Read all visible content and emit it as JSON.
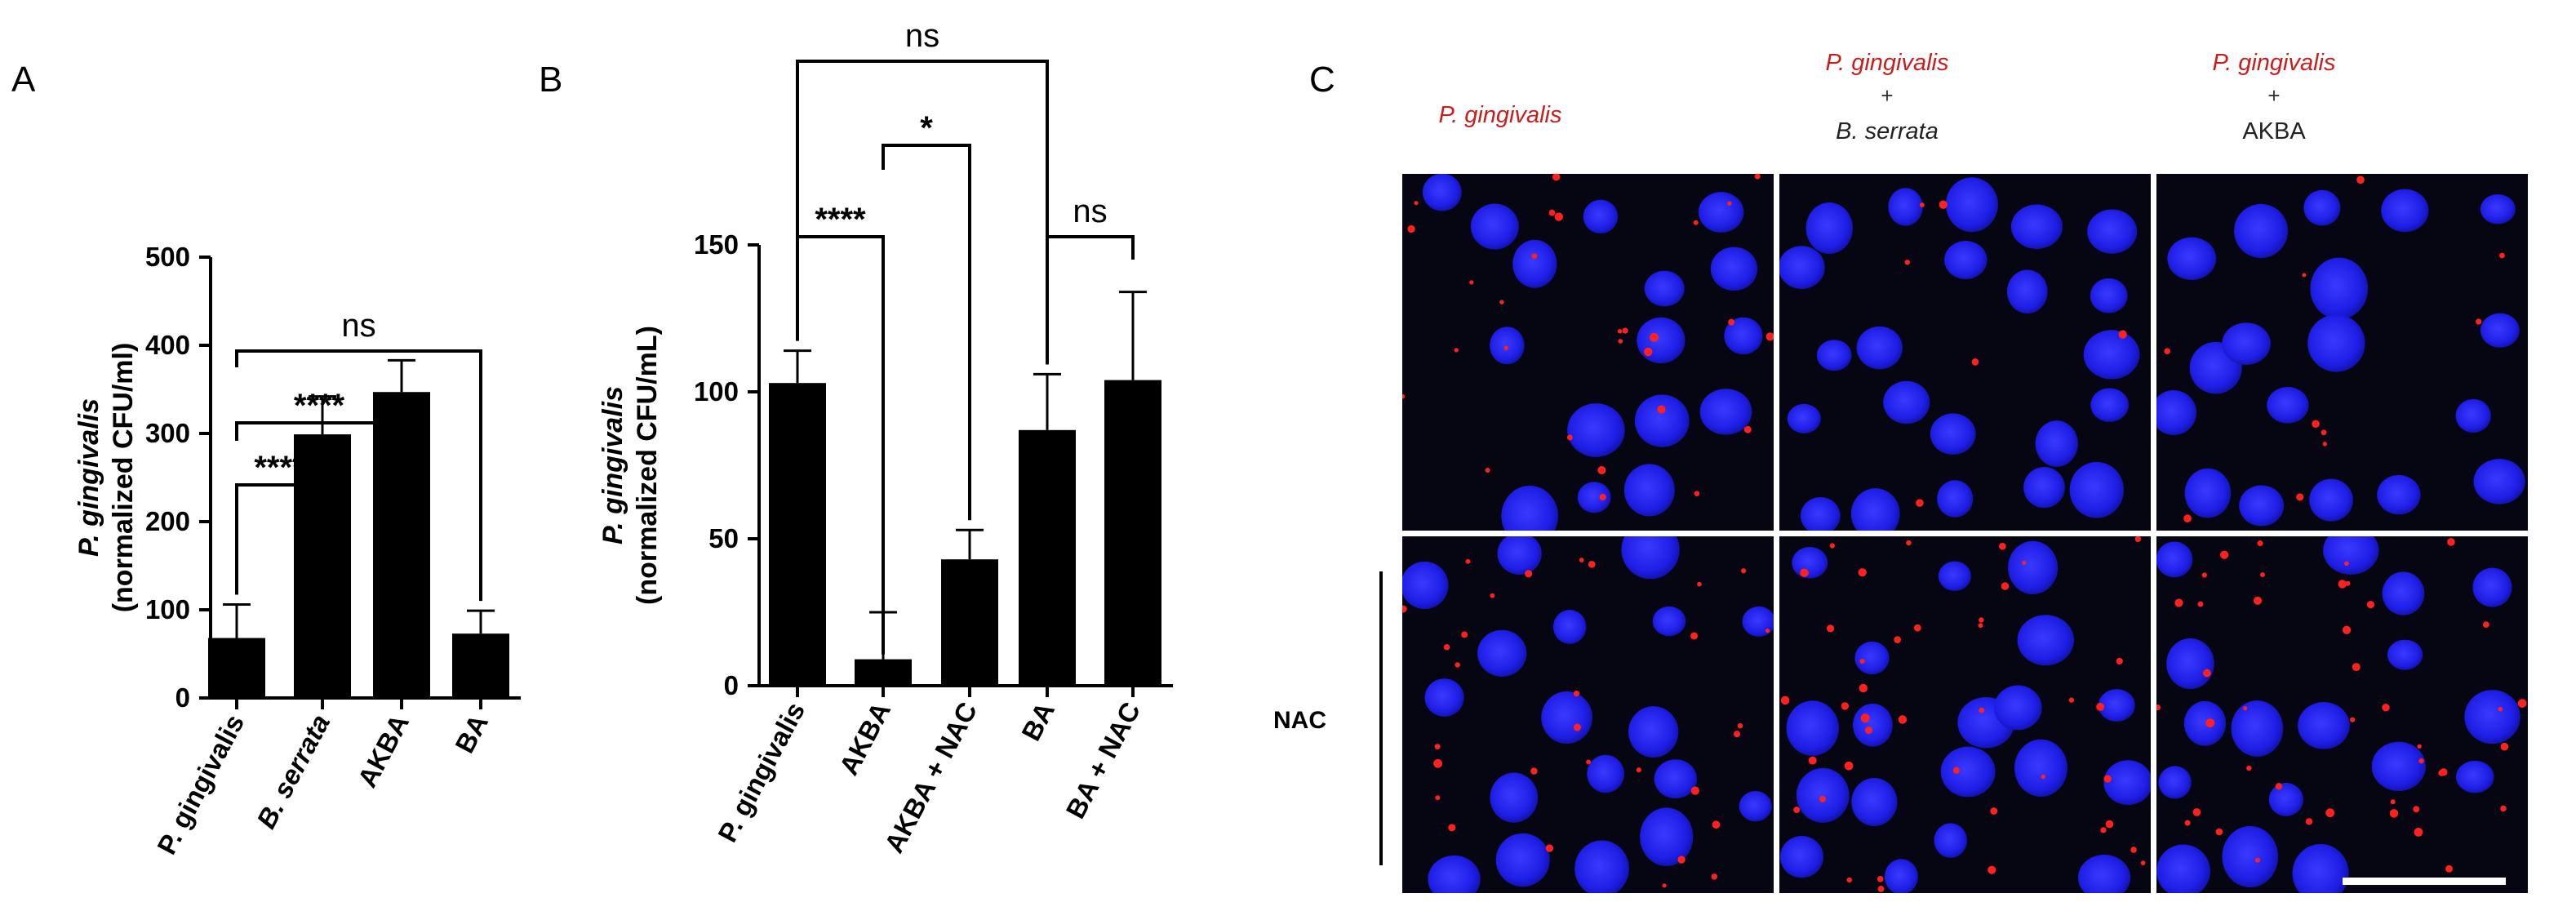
{
  "chart_data": [
    {
      "type": "bar",
      "panel": "A",
      "ylabel_italic": "P. gingivalis",
      "ylabel_rest": "(normalized CFU/ml)",
      "categories": [
        "P. gingivalis",
        "B. serrata",
        "AKBA",
        "BA"
      ],
      "values": [
        68,
        299,
        347,
        73
      ],
      "errors": [
        38,
        43,
        36,
        26
      ],
      "ylim": [
        0,
        500
      ],
      "yticks": [
        "0",
        "100",
        "200",
        "300",
        "400",
        "500"
      ],
      "significance": [
        {
          "from": 0,
          "to": 1,
          "label": "****"
        },
        {
          "from": 0,
          "to": 2,
          "label": "****"
        },
        {
          "from": 0,
          "to": 3,
          "label": "ns"
        }
      ]
    },
    {
      "type": "bar",
      "panel": "B",
      "ylabel_italic": "P. gingivalis",
      "ylabel_rest": "(normalized CFU/mL)",
      "categories": [
        "P. gingivalis",
        "AKBA",
        "AKBA + NAC",
        "BA",
        "BA + NAC"
      ],
      "values": [
        103,
        9,
        43,
        87,
        104
      ],
      "errors": [
        11,
        16,
        10,
        19,
        30
      ],
      "ylim": [
        0,
        150
      ],
      "yticks": [
        "0",
        "50",
        "100",
        "150"
      ],
      "significance": [
        {
          "from": 0,
          "to": 1,
          "label": "****"
        },
        {
          "from": 1,
          "to": 2,
          "label": "*"
        },
        {
          "from": 0,
          "to": 3,
          "label": "ns"
        },
        {
          "from": 3,
          "to": 4,
          "label": "ns"
        }
      ]
    }
  ],
  "panelC": {
    "letter": "C",
    "columns": [
      {
        "line1": "P. gingivalis",
        "plus": "",
        "line2": "",
        "line2_italic": false
      },
      {
        "line1": "P. gingivalis",
        "plus": "+",
        "line2": "B. serrata",
        "line2_italic": true
      },
      {
        "line1": "P. gingivalis",
        "plus": "+",
        "line2": "AKBA",
        "line2_italic": false
      }
    ],
    "row_label": "NAC",
    "colors": {
      "background": "#060612",
      "nucleus": "#1e1ee6",
      "bacteria": "#ff2020",
      "separator": "#ffffff"
    }
  }
}
